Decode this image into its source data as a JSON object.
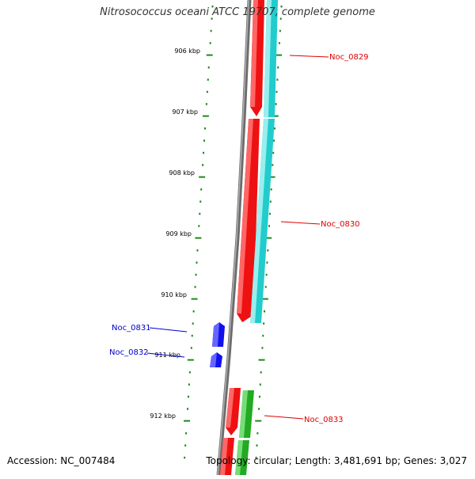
{
  "title": "Nitrosococcus oceani ATCC 19707, complete genome",
  "accession": "Accession: NC_007484",
  "summary": "Topology: circular; Length: 3,481,691 bp; Genes: 3,027",
  "colors": {
    "backbone": "#8c8c8c",
    "ticks": "#1a8a1a",
    "gene_red": "#ee1111",
    "gene_cyan": "#22cccc",
    "gene_blue": "#1111ee",
    "gene_green": "#22aa22",
    "label_red": "#dd0000",
    "label_blue": "#0000cc"
  },
  "scale_labels": [
    "906 kbp",
    "907 kbp",
    "908 kbp",
    "909 kbp",
    "910 kbp",
    "911 kbp",
    "912 kbp"
  ],
  "gene_labels": {
    "noc0829": "Noc_0829",
    "noc0830": "Noc_0830",
    "noc0831": "Noc_0831",
    "noc0832": "Noc_0832",
    "noc0833": "Noc_0833"
  }
}
